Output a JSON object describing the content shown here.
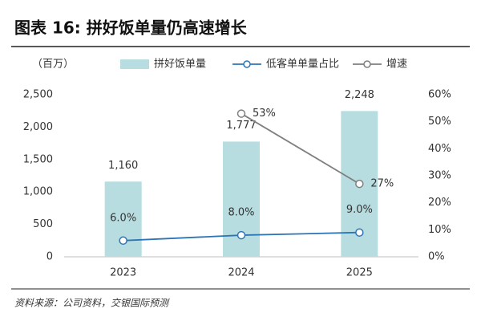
{
  "chart_data": {
    "type": "combo",
    "title": "图表 16: 拼好饭单量仍高速增长",
    "y_label": "（百万）",
    "source": "资料来源：公司资料，交银国际预测",
    "categories": [
      "2023",
      "2024",
      "2025"
    ],
    "series": [
      {
        "name": "拼好饭单量",
        "type": "bar",
        "color": "#b7dde0",
        "values": [
          1160,
          1777,
          2248
        ],
        "value_labels": [
          "1,160",
          "1,777",
          "2,248"
        ]
      },
      {
        "name": "低客单单量占比",
        "type": "line",
        "axis": "y2",
        "color": "#2e75b6",
        "values": [
          6.0,
          8.0,
          9.0
        ],
        "value_labels": [
          "6.0%",
          "8.0%",
          "9.0%"
        ]
      },
      {
        "name": "增速",
        "type": "line",
        "axis": "y2",
        "color": "#7f7f7f",
        "values": [
          null,
          53,
          27
        ],
        "value_labels": [
          null,
          "53%",
          "27%"
        ]
      }
    ],
    "ylim": [
      0,
      2500
    ],
    "yticks": [
      0,
      500,
      {
        "value": 1000,
        "label": "1,000"
      },
      {
        "value": 1500,
        "label": "1,500"
      },
      {
        "value": 2000,
        "label": "2,000"
      },
      {
        "value": 2500,
        "label": "2,500"
      }
    ],
    "y2lim": [
      0,
      60
    ],
    "y2ticks": [
      {
        "value": 0,
        "label": "0%"
      },
      {
        "value": 10,
        "label": "10%"
      },
      {
        "value": 20,
        "label": "20%"
      },
      {
        "value": 30,
        "label": "30%"
      },
      {
        "value": 40,
        "label": "40%"
      },
      {
        "value": 50,
        "label": "50%"
      },
      {
        "value": 60,
        "label": "60%"
      }
    ],
    "grid": false
  }
}
